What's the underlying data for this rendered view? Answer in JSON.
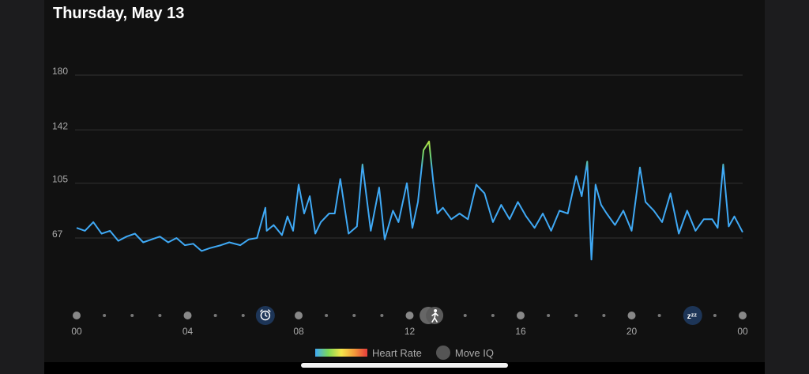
{
  "header": {
    "title": "Thursday, May 13"
  },
  "chart_data": {
    "type": "line",
    "title": "",
    "ylim": [
      30,
      180
    ],
    "xlim": [
      0,
      24
    ],
    "y_ticks": [
      "180",
      "142",
      "105",
      "67"
    ],
    "x_ticks": [
      "00",
      "04",
      "08",
      "12",
      "16",
      "20",
      "00"
    ],
    "series": [
      {
        "x": [
          0,
          0.3,
          0.6,
          0.9,
          1.2,
          1.5,
          1.8,
          2.1,
          2.4,
          2.7,
          3.0,
          3.3,
          3.6,
          3.9,
          4.2,
          4.5,
          4.8,
          5.2,
          5.5,
          5.9,
          6.2,
          6.5,
          6.8,
          6.85,
          7.1,
          7.4,
          7.6,
          7.8,
          8.0,
          8.2,
          8.4,
          8.6,
          8.8,
          9.1,
          9.3,
          9.5,
          9.8,
          10.1,
          10.3,
          10.6,
          10.9,
          11.1,
          11.4,
          11.6,
          11.9,
          12.1,
          12.3,
          12.5,
          12.7,
          12.85,
          13.0,
          13.2,
          13.5,
          13.8,
          14.1,
          14.4,
          14.7,
          15.0,
          15.3,
          15.6,
          15.9,
          16.2,
          16.5,
          16.8,
          17.1,
          17.4,
          17.7,
          18.0,
          18.2,
          18.4,
          18.55,
          18.7,
          18.9,
          19.1,
          19.4,
          19.7,
          20.0,
          20.3,
          20.5,
          20.8,
          21.1,
          21.4,
          21.7,
          22.0,
          22.3,
          22.6,
          22.9,
          23.1,
          23.3,
          23.5,
          23.7,
          24.0
        ],
        "y": [
          74,
          72,
          78,
          70,
          72,
          65,
          68,
          70,
          64,
          66,
          68,
          64,
          67,
          62,
          63,
          58,
          60,
          62,
          64,
          62,
          66,
          67,
          88,
          72,
          76,
          69,
          82,
          72,
          104,
          84,
          96,
          70,
          78,
          84,
          84,
          108,
          70,
          75,
          118,
          72,
          102,
          66,
          86,
          78,
          105,
          74,
          92,
          128,
          134,
          106,
          84,
          88,
          80,
          84,
          80,
          104,
          98,
          78,
          90,
          80,
          92,
          82,
          74,
          84,
          72,
          86,
          84,
          110,
          96,
          120,
          52,
          104,
          90,
          84,
          76,
          86,
          72,
          116,
          92,
          86,
          78,
          98,
          70,
          86,
          72,
          80,
          80,
          74,
          118,
          75,
          82,
          71
        ],
        "heart_rate_zone_colors": [
          "#3fa9f5",
          "#7ed957",
          "#f5e64b",
          "#f59b3b",
          "#e53b3b"
        ]
      }
    ],
    "timeline_markers": [
      {
        "hour": 6.8,
        "icon": "alarm-clock-icon"
      },
      {
        "hour": 12.9,
        "icon": "walking-icon"
      },
      {
        "hour": 22.2,
        "icon": "sleep-zzz-icon"
      }
    ],
    "legend": {
      "heart_rate": "Heart Rate",
      "move_iq": "Move IQ"
    }
  }
}
